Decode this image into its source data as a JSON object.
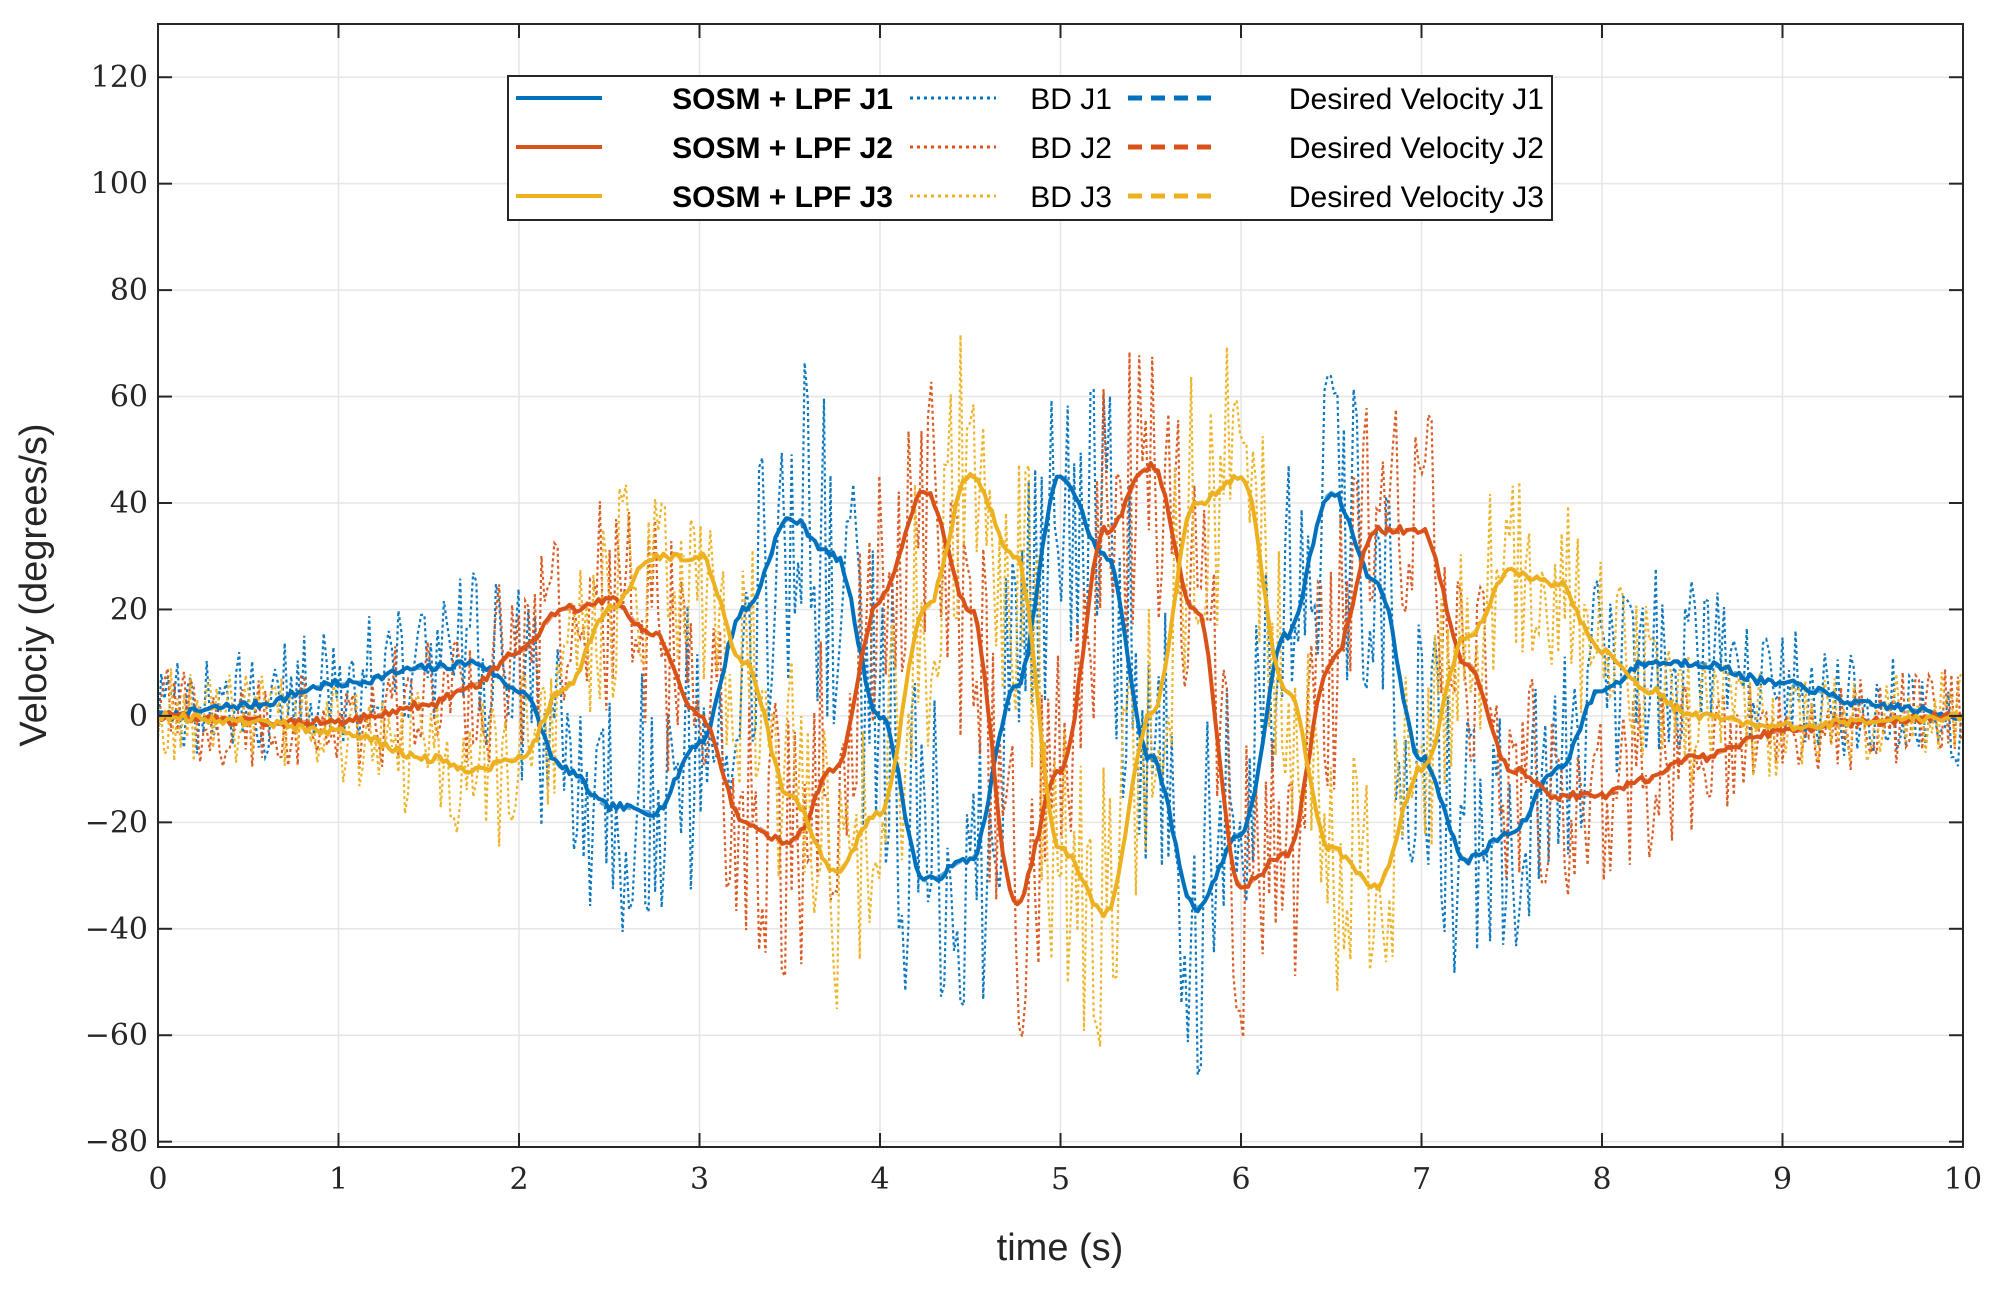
{
  "chart_data": {
    "type": "line",
    "title": "",
    "xlabel": "time (s)",
    "ylabel": "Velociy (degrees/s)",
    "xlim": [
      0,
      10
    ],
    "ylim": [
      -81,
      130
    ],
    "xticks": [
      0,
      1,
      2,
      3,
      4,
      5,
      6,
      7,
      8,
      9,
      10
    ],
    "yticks": [
      -80,
      -60,
      -40,
      -20,
      0,
      20,
      40,
      60,
      80,
      100,
      120
    ],
    "x_tick_labels": [
      "0",
      "1",
      "2",
      "3",
      "4",
      "5",
      "6",
      "7",
      "8",
      "9",
      "10"
    ],
    "y_tick_labels": [
      "−80",
      "−60",
      "−40",
      "−20",
      "0",
      "20",
      "40",
      "60",
      "80",
      "100",
      "120"
    ],
    "grid": true,
    "legend_position": "top-center",
    "colors": {
      "J1": "#0072BD",
      "J2": "#D95319",
      "J3": "#EDB120"
    },
    "x": [
      0,
      0.5,
      1,
      1.5,
      1.75,
      2,
      2.25,
      2.5,
      2.75,
      3,
      3.25,
      3.5,
      3.75,
      4,
      4.25,
      4.5,
      4.75,
      5,
      5.25,
      5.5,
      5.75,
      6,
      6.25,
      6.5,
      6.75,
      7,
      7.25,
      7.5,
      7.75,
      8,
      8.25,
      8.5,
      9,
      9.5,
      10
    ],
    "series": [
      {
        "name": "SOSM + LPF J1",
        "style": "solid",
        "color": "#0072BD",
        "values": [
          0,
          2,
          6,
          9,
          10,
          5,
          -10,
          -17,
          -18,
          -5,
          20,
          37,
          30,
          0,
          -31,
          -27,
          5,
          45,
          30,
          -8,
          -36,
          -22,
          15,
          42,
          25,
          -8,
          -27,
          -22,
          -10,
          5,
          10,
          10,
          6,
          2,
          0
        ]
      },
      {
        "name": "SOSM + LPF J2",
        "style": "solid",
        "color": "#D95319",
        "values": [
          0,
          -1,
          -1,
          2,
          6,
          12,
          20,
          22,
          15,
          0,
          -20,
          -24,
          -10,
          22,
          42,
          20,
          -35,
          -10,
          35,
          47,
          20,
          -32,
          -26,
          10,
          35,
          35,
          10,
          -10,
          -15,
          -15,
          -12,
          -8,
          -3,
          -1,
          0
        ]
      },
      {
        "name": "SOSM + LPF J3",
        "style": "solid",
        "color": "#EDB120",
        "values": [
          0,
          -1,
          -3,
          -8,
          -10,
          -8,
          5,
          20,
          30,
          30,
          10,
          -15,
          -29,
          -18,
          20,
          45,
          30,
          -25,
          -37,
          0,
          40,
          45,
          5,
          -25,
          -32,
          -10,
          15,
          27,
          25,
          12,
          5,
          0,
          -2,
          -1,
          0
        ]
      },
      {
        "name": "BD J1",
        "style": "dotted",
        "color": "#0072BD",
        "noise_amplitude": 35,
        "follows": "SOSM + LPF J1"
      },
      {
        "name": "BD J2",
        "style": "dotted",
        "color": "#D95319",
        "noise_amplitude": 30,
        "follows": "SOSM + LPF J2"
      },
      {
        "name": "BD J3",
        "style": "dotted",
        "color": "#EDB120",
        "noise_amplitude": 30,
        "follows": "SOSM + LPF J3"
      },
      {
        "name": "Desired Velocity J1",
        "style": "dashed",
        "color": "#0072BD",
        "follows": "SOSM + LPF J1"
      },
      {
        "name": "Desired Velocity J2",
        "style": "dashed",
        "color": "#D95319",
        "follows": "SOSM + LPF J2"
      },
      {
        "name": "Desired Velocity J3",
        "style": "dashed",
        "color": "#EDB120",
        "follows": "SOSM + LPF J3"
      }
    ],
    "legend": [
      [
        "SOSM + LPF J1",
        "BD J1",
        "Desired Velocity J1"
      ],
      [
        "SOSM + LPF J2",
        "BD J2",
        "Desired Velocity J2"
      ],
      [
        "SOSM + LPF J3",
        "BD J3",
        "Desired Velocity J3"
      ]
    ]
  }
}
